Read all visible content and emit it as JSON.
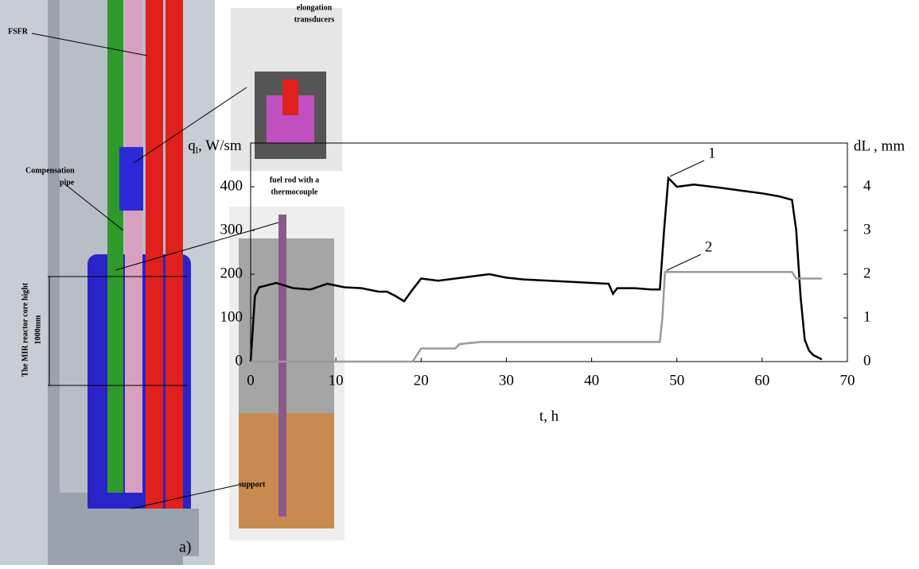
{
  "figure": {
    "fsfr": "FSFR",
    "elongation_transducers": [
      "elongation",
      "transducers"
    ],
    "compensation_pipe": [
      "Compensation",
      "pipe"
    ],
    "fuel_rod": [
      "fuel rod with a",
      "thermocouple"
    ],
    "core_height": [
      "The MIR reactor core hight",
      "1000mm"
    ],
    "support": "support",
    "panel_label": "a)"
  },
  "chart_data": {
    "type": "line",
    "x_label": "t, h",
    "y_label": {
      "main": "q",
      "sub": "l",
      "rest": ", W/sm"
    },
    "y2_label": "dL , mm",
    "xlim": [
      0,
      70
    ],
    "xticks": [
      0,
      10,
      20,
      30,
      40,
      50,
      60,
      70
    ],
    "ylim": [
      0,
      500
    ],
    "yticks": [
      0,
      100,
      200,
      300,
      400
    ],
    "y2lim": [
      0,
      5
    ],
    "y2ticks": [
      0,
      1,
      2,
      3,
      4
    ],
    "grid": false,
    "series": [
      {
        "name": "1",
        "color": "#000000",
        "x": [
          0,
          0.5,
          1,
          2,
          3,
          5,
          7,
          9,
          11,
          13,
          15,
          16,
          17,
          18,
          19,
          20,
          22,
          24,
          26,
          28,
          30,
          32,
          35,
          38,
          40,
          42,
          42.5,
          43,
          45,
          47,
          48,
          48.5,
          49,
          50,
          52,
          55,
          58,
          60,
          62,
          63.5,
          64,
          64.5,
          65,
          65.5,
          66,
          66.5,
          67
        ],
        "values": [
          0,
          150,
          170,
          175,
          180,
          168,
          165,
          178,
          170,
          168,
          160,
          160,
          150,
          138,
          165,
          190,
          185,
          190,
          195,
          200,
          192,
          188,
          185,
          182,
          180,
          178,
          155,
          168,
          168,
          165,
          165,
          300,
          420,
          400,
          405,
          398,
          390,
          385,
          378,
          370,
          300,
          150,
          50,
          25,
          15,
          10,
          5
        ]
      },
      {
        "name": "2",
        "color": "#999999",
        "axis": "y2",
        "x": [
          0,
          19,
          20,
          24,
          24.5,
          27,
          48,
          48.3,
          48.6,
          63.5,
          64,
          67
        ],
        "values": [
          0,
          0,
          0.3,
          0.3,
          0.4,
          0.45,
          0.45,
          1.0,
          2.05,
          2.05,
          1.9,
          1.9
        ]
      }
    ]
  }
}
